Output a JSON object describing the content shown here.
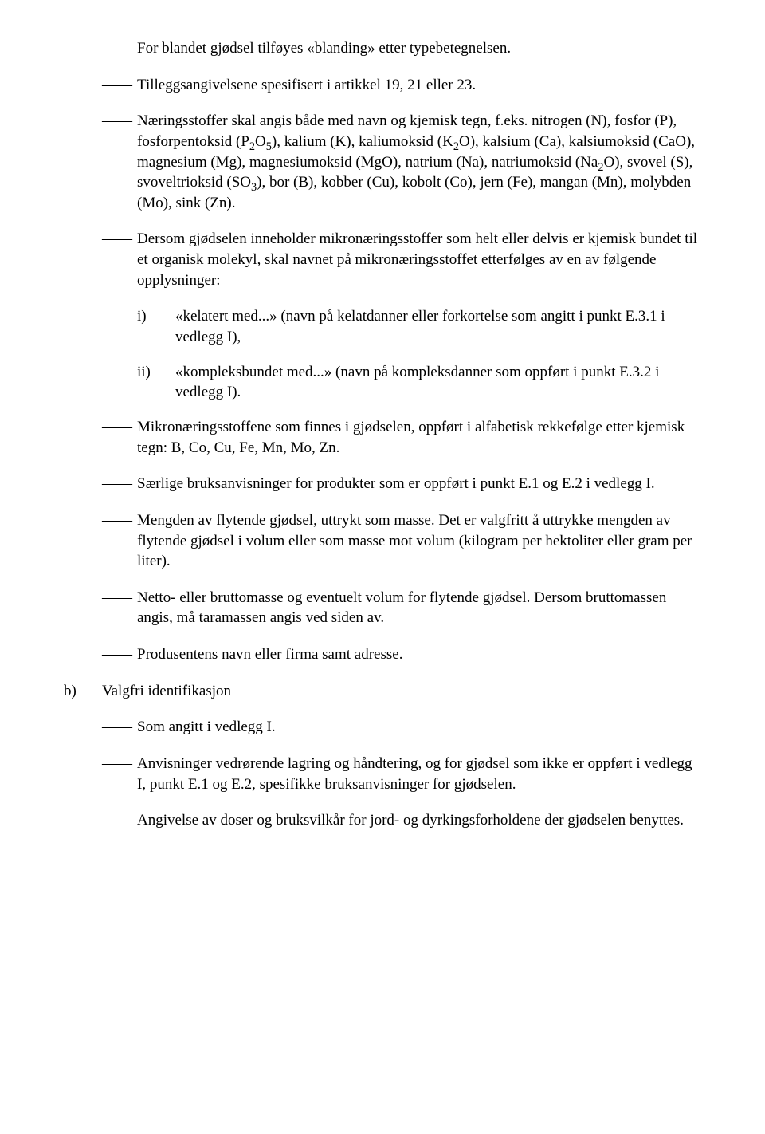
{
  "dash": "——",
  "items": {
    "p1": "For blandet gjødsel tilføyes «blanding» etter typebetegnelsen.",
    "p2": "Tilleggsangivelsene spesifisert i artikkel 19, 21 eller 23.",
    "p3_pre": "Næringsstoffer skal angis både med navn og kjemisk tegn, f.eks. nitrogen (N), fosfor (P), fosforpentoksid (P",
    "p3_mid1": "), kalium (K), kaliumoksid (K",
    "p3_mid2": "O), kalsium (Ca), kalsiumoksid (CaO), magnesium (Mg), magnesiumoksid (MgO), natrium (Na), natriumoksid (Na",
    "p3_mid3": "O), svovel (S), svoveltrioksid (SO",
    "p3_end": "), bor (B), kobber (Cu), kobolt (Co), jern (Fe), mangan (Mn), molybden (Mo), sink (Zn).",
    "sub2": "2",
    "sub2o5a": "2",
    "sub2o5b": "O",
    "sub2o5c": "5",
    "sub3": "3",
    "p4": "Dersom gjødselen inneholder mikronæringsstoffer som helt eller delvis er kjemisk bundet til et organisk molekyl, skal navnet på mikronæringsstoffet etterfølges av en av følgende opplysninger:",
    "i_marker": "i)",
    "i_text": "«kelatert med...» (navn på kelatdanner eller forkortelse som angitt i punkt E.3.1 i vedlegg I),",
    "ii_marker": "ii)",
    "ii_text": "«kompleksbundet med...» (navn på kompleksdanner som oppført i punkt E.3.2 i vedlegg I).",
    "p5": "Mikronæringsstoffene som finnes i gjødselen, oppført i alfabetisk rekkefølge etter kjemisk tegn: B, Co, Cu, Fe, Mn, Mo, Zn.",
    "p6": "Særlige bruksanvisninger for produkter som er oppført i punkt E.1 og E.2 i vedlegg I.",
    "p7": "Mengden av flytende gjødsel, uttrykt som masse. Det er valgfritt å uttrykke mengden av flytende gjødsel i volum eller som masse mot volum (kilogram per hektoliter eller gram per liter).",
    "p8": "Netto- eller bruttomasse og eventuelt volum for flytende gjødsel. Dersom bruttomassen angis, må taramassen angis ved siden av.",
    "p9": "Produsentens navn eller firma samt adresse.",
    "b_marker": "b)",
    "b_title": "Valgfri identifikasjon",
    "b1": "Som angitt i vedlegg I.",
    "b2": "Anvisninger vedrørende lagring og håndtering, og for gjødsel som ikke er oppført i vedlegg I, punkt E.1 og E.2, spesifikke bruksanvisninger for gjødselen.",
    "b3": "Angivelse av doser og bruksvilkår for jord- og dyrkingsforholdene der gjødselen benyttes."
  }
}
